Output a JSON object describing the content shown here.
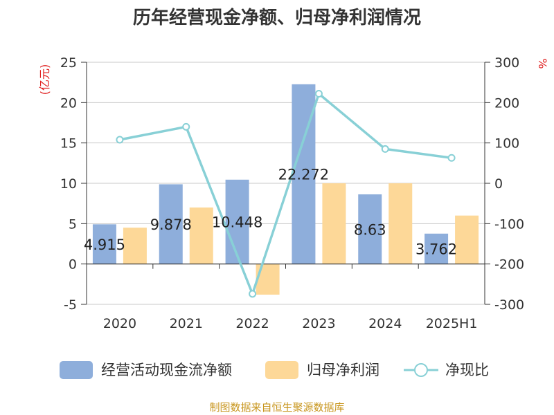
{
  "chart_data": {
    "type": "bar",
    "title": "历年经营现金净额、归母净利润情况",
    "categories": [
      "2020",
      "2021",
      "2022",
      "2023",
      "2024",
      "2025H1"
    ],
    "y_left": {
      "unit": "(亿元)",
      "range": [
        -5,
        25
      ],
      "ticks": [
        -5,
        0,
        5,
        10,
        15,
        20,
        25
      ]
    },
    "y_right": {
      "unit": "%",
      "range": [
        -300,
        300
      ],
      "ticks": [
        -300,
        -200,
        -100,
        0,
        100,
        200,
        300
      ]
    },
    "grid": true,
    "legend_position": "bottom",
    "series": [
      {
        "name": "经营活动现金流净额",
        "type": "bar",
        "axis": "left",
        "color": "#8eaedb",
        "values": [
          4.915,
          9.878,
          10.448,
          22.272,
          8.63,
          3.762
        ],
        "labels": [
          "4.915",
          "9.878",
          "10.448",
          "22.272",
          "8.63",
          "3.762"
        ]
      },
      {
        "name": "归母净利润",
        "type": "bar",
        "axis": "left",
        "color": "#fdd898",
        "values": [
          4.5,
          7.0,
          -3.8,
          10.0,
          10.0,
          6.0
        ]
      },
      {
        "name": "净现比",
        "type": "line",
        "axis": "right",
        "color": "#88d0d6",
        "values": [
          108,
          140,
          -274,
          222,
          85,
          63
        ]
      }
    ]
  },
  "footer": {
    "source": "制图数据来自恒生聚源数据库"
  }
}
